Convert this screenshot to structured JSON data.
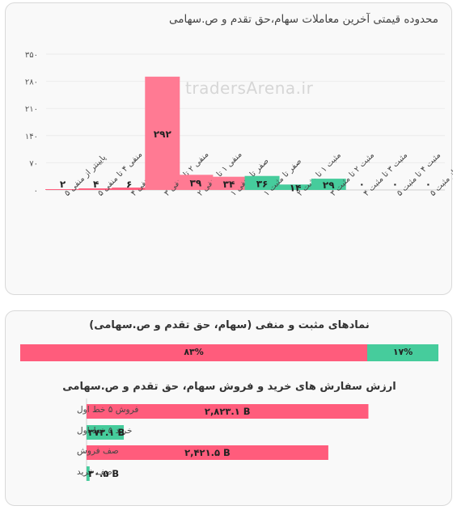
{
  "watermark": "tradersArena.ir",
  "colors": {
    "negative": "#ff5c7c",
    "negative_tall": "#ff7a93",
    "negative_light": "#ffa0b4",
    "positive": "#46cc9c",
    "grid": "#ececec"
  },
  "chart_data": [
    {
      "type": "bar",
      "title": "محدوده قیمتی آخرین معاملات سهام،حق تقدم و ص.سهامی",
      "yticks": [
        "۰",
        "۷۰",
        "۱۴۰",
        "۲۱۰",
        "۲۸۰",
        "۳۵۰"
      ],
      "ylim": [
        0,
        350
      ],
      "grid": true,
      "categories": [
        "پایینتر از منفی ۵",
        "منفی ۴ تا منفی ۵",
        "منفی ۳ تا منفی ۴",
        "منفی ۲ تا منفی ۳",
        "منفی ۱ تا منفی ۲",
        "صفر تا منفی ۱",
        "صفر تا مثبت ۱",
        "مثبت ۱ تا مثبت ۲",
        "مثبت ۲ تا مثبت ۳",
        "مثبت ۳ تا مثبت ۴",
        "مثبت ۴ تا مثبت ۵",
        "بالاتر از مثبت ۵"
      ],
      "values": [
        2,
        4,
        6,
        292,
        39,
        34,
        36,
        14,
        29,
        0,
        0,
        0
      ],
      "value_labels": [
        "۲",
        "۴",
        "۶",
        "۲۹۲",
        "۳۹",
        "۳۴",
        "۳۶",
        "۱۴",
        "۲۹",
        "۰",
        "۰",
        "۰"
      ],
      "bar_colors": [
        "#ff5c7c",
        "#ff5c7c",
        "#ff5c7c",
        "#ff7a93",
        "#ff7a93",
        "#ff7a93",
        "#46cc9c",
        "#46cc9c",
        "#46cc9c",
        "#46cc9c",
        "#46cc9c",
        "#46cc9c"
      ]
    },
    {
      "type": "bar",
      "orientation": "horizontal-stacked",
      "title": "نمادهای مثبت و منفی (سهام، حق تقدم و ص.سهامی)",
      "series": [
        {
          "value": 83,
          "label": "۸۳%",
          "color": "#ff5c7c"
        },
        {
          "value": 17,
          "label": "۱۷%",
          "color": "#46cc9c"
        }
      ]
    },
    {
      "type": "bar",
      "orientation": "horizontal",
      "title": "ارزش سفارش های خرید و فروش سهام، حق تقدم و ص.سهامی",
      "categories": [
        "فروش ۵ خط اول",
        "خرید ۵ خط اول",
        "صف فروش",
        "صف خرید"
      ],
      "values": [
        2823.1,
        373.1,
        2421.5,
        30.5
      ],
      "value_labels": [
        "۲,۸۲۳.۱ B",
        "۳۷۳.۱ B",
        "۲,۴۲۱.۵ B",
        "۳۰.۵ B"
      ],
      "bar_colors": [
        "#ff5c7c",
        "#46cc9c",
        "#ff5c7c",
        "#46cc9c"
      ],
      "xlim": [
        0,
        3200
      ]
    }
  ]
}
